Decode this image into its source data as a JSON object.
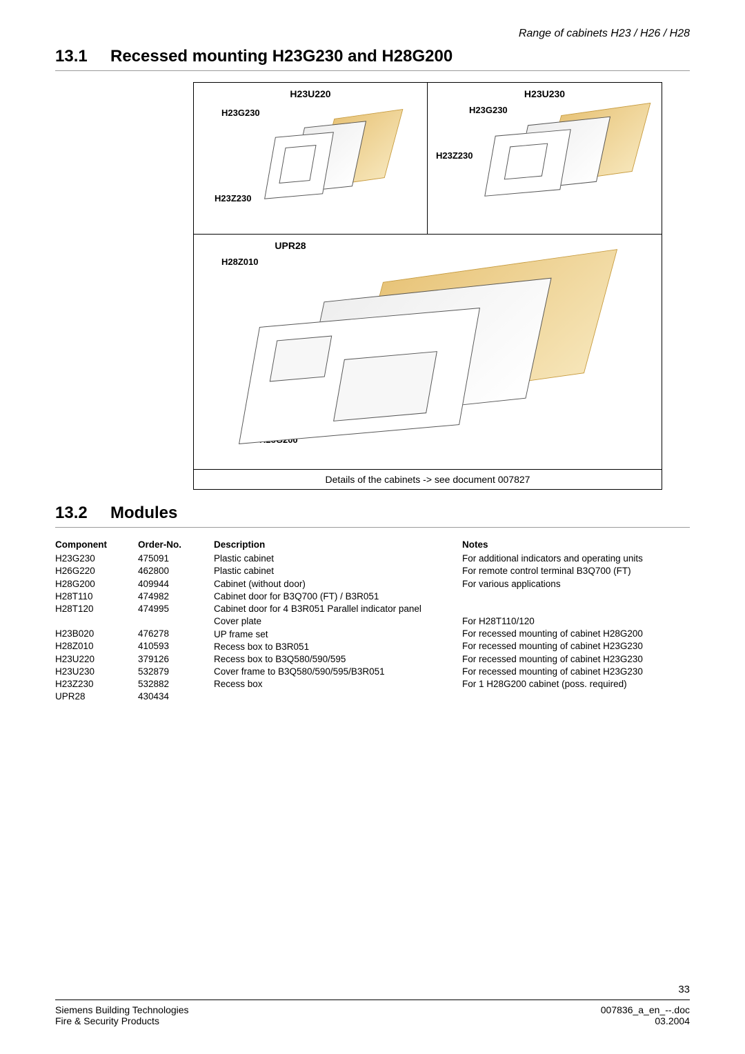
{
  "header": {
    "doc_range": "Range of cabinets H23 / H26 / H28"
  },
  "sections": {
    "s1": {
      "num": "13.1",
      "title": "Recessed mounting H23G230 and H28G200"
    },
    "s2": {
      "num": "13.2",
      "title": "Modules"
    }
  },
  "diagram": {
    "top_left_title": "H23U220",
    "top_right_title": "H23U230",
    "label_h23g230_l": "H23G230",
    "label_h23z230_l": "H23Z230",
    "label_h23g230_r": "H23G230",
    "label_h23z230_r": "H23Z230",
    "bottom_title": "UPR28",
    "label_h28z010": "H28Z010",
    "label_h28g200": "H28G200",
    "caption": "Details of the cabinets -> see document 007827"
  },
  "table": {
    "headers": {
      "component": "Component",
      "order": "Order-No.",
      "desc": "Description",
      "notes": "Notes"
    },
    "rows": [
      {
        "component": "H23G230",
        "order": "475091",
        "desc": "Plastic cabinet",
        "notes": "For additional indicators and operating units"
      },
      {
        "component": "H26G220",
        "order": "462800",
        "desc": "Plastic cabinet",
        "notes": "For remote control terminal B3Q700 (FT)"
      },
      {
        "component": "H28G200",
        "order": "409944",
        "desc": "Cabinet (without door)",
        "notes": "For various applications"
      },
      {
        "component": "H28T110",
        "order": "474982",
        "desc": "Cabinet door for B3Q700 (FT) / B3R051",
        "notes": ""
      },
      {
        "component": "H28T120",
        "order": "474995",
        "desc": "Cabinet door for 4 B3R051 Parallel indicator panel",
        "notes": ""
      },
      {
        "component": "H23B020",
        "order": "476278",
        "desc": "Cover plate",
        "notes": "For H28T110/120"
      },
      {
        "component": "H28Z010",
        "order": "410593",
        "desc": "UP frame set",
        "notes": "For recessed mounting of cabinet H28G200"
      },
      {
        "component": "H23U220",
        "order": "379126",
        "desc": "Recess box to B3R051",
        "notes": "For recessed mounting of cabinet H23G230"
      },
      {
        "component": "H23U230",
        "order": "532879",
        "desc": "Recess box to B3Q580/590/595",
        "notes": "For recessed mounting of cabinet H23G230"
      },
      {
        "component": "H23Z230",
        "order": "532882",
        "desc": "Cover frame to B3Q580/590/595/B3R051",
        "notes": "For recessed mounting of cabinet H23G230"
      },
      {
        "component": "UPR28",
        "order": "430434",
        "desc": "Recess box",
        "notes": "For 1 H28G200 cabinet (poss. required)"
      }
    ]
  },
  "footer": {
    "left1": "Siemens Building Technologies",
    "left2": "Fire & Security Products",
    "right1": "007836_a_en_--.doc",
    "right2": "03.2004",
    "page": "33"
  }
}
